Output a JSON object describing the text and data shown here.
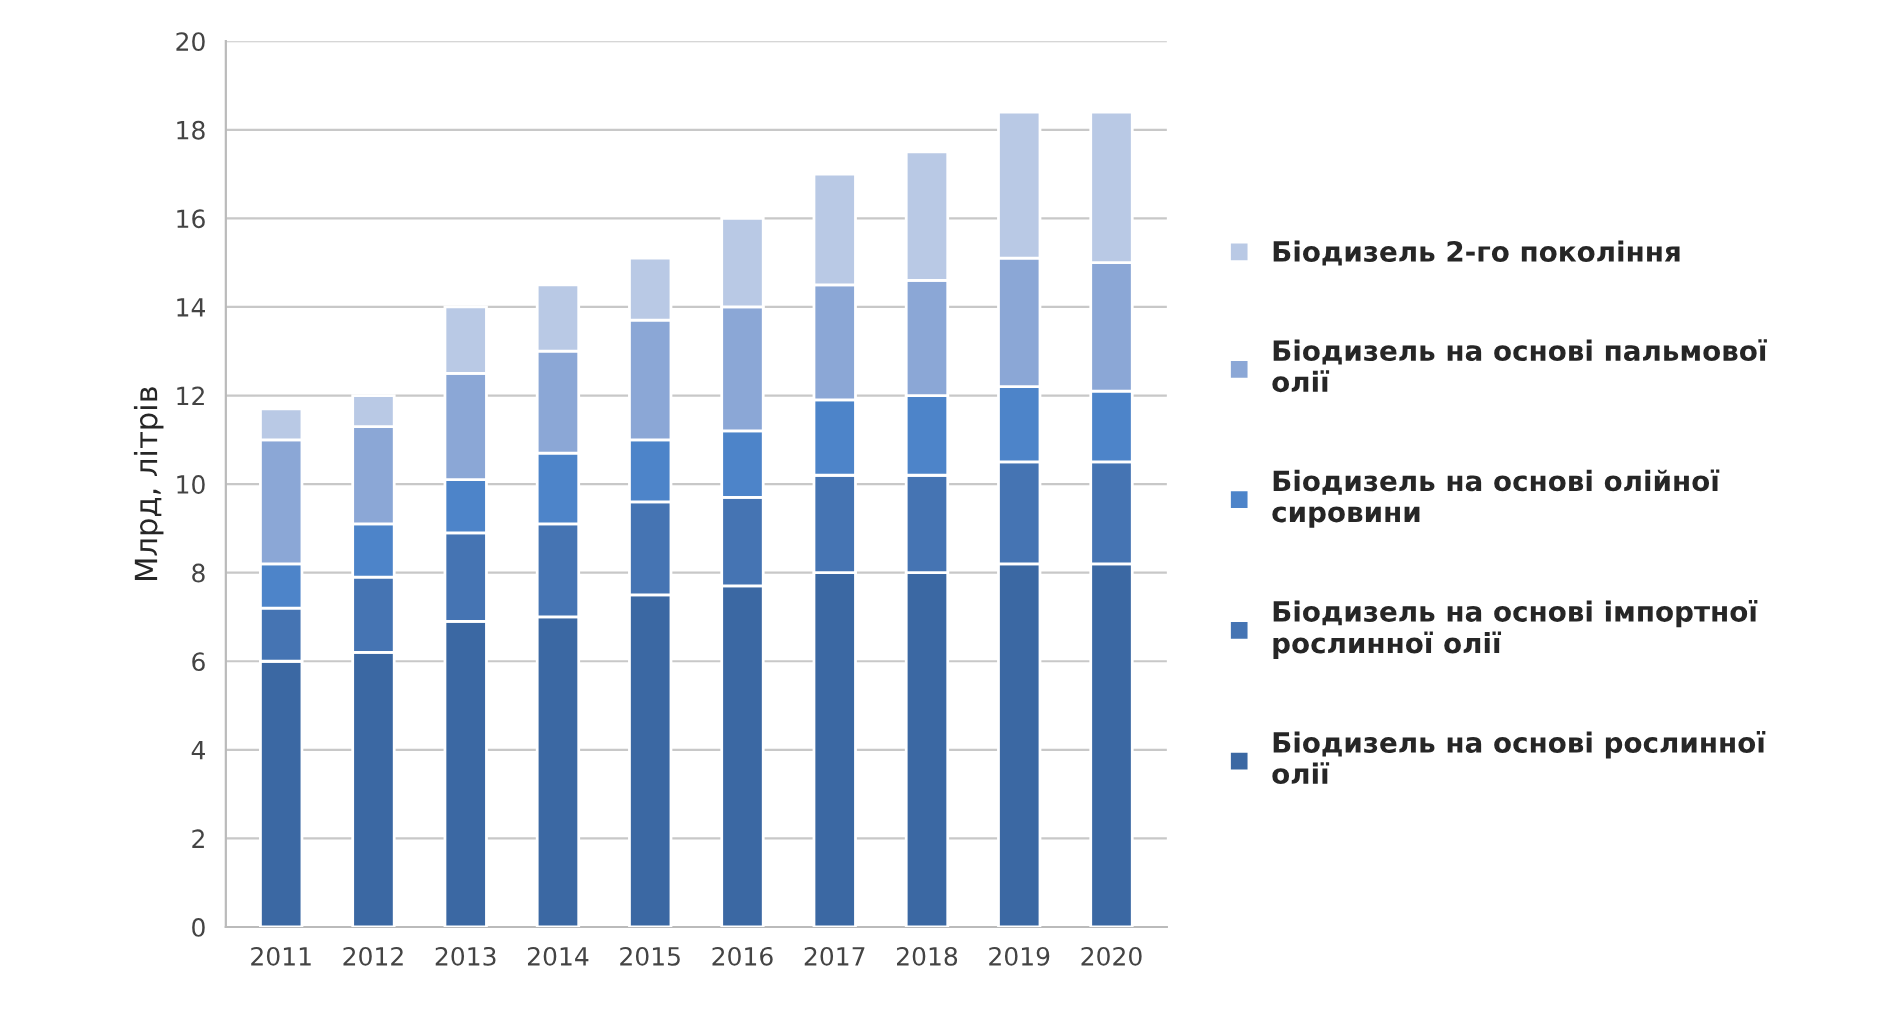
{
  "chart_data": {
    "type": "bar",
    "stacked": true,
    "ylabel": "Млрд, літрів",
    "categories": [
      "2011",
      "2012",
      "2013",
      "2014",
      "2015",
      "2016",
      "2017",
      "2018",
      "2019",
      "2020"
    ],
    "series": [
      {
        "name": "Біодизель на основі рослинної олії",
        "color": "#3b68a3",
        "values": [
          6.0,
          6.2,
          6.9,
          7.0,
          7.5,
          7.7,
          8.0,
          8.0,
          8.2,
          8.2
        ]
      },
      {
        "name": "Біодизель на основі імпортної рослинної олії",
        "color": "#4574b3",
        "values": [
          1.2,
          1.7,
          2.0,
          2.1,
          2.1,
          2.0,
          2.2,
          2.2,
          2.3,
          2.3
        ]
      },
      {
        "name": "Біодизель на основі олійної сировини",
        "color": "#4d84c9",
        "values": [
          1.0,
          1.2,
          1.2,
          1.6,
          1.4,
          1.5,
          1.7,
          1.8,
          1.7,
          1.6
        ]
      },
      {
        "name": "Біодизель на основі пальмової олії",
        "color": "#8ba7d6",
        "values": [
          2.8,
          2.2,
          2.4,
          2.3,
          2.7,
          2.8,
          2.6,
          2.6,
          2.9,
          2.9
        ]
      },
      {
        "name": "Біодизель 2-го покоління",
        "color": "#b9c9e5",
        "values": [
          0.7,
          0.7,
          1.5,
          1.5,
          1.4,
          2.0,
          2.5,
          2.9,
          3.3,
          3.4
        ]
      }
    ],
    "ylim": [
      0,
      20
    ],
    "yticks": [
      0,
      2,
      4,
      6,
      8,
      10,
      12,
      14,
      16,
      18,
      20
    ],
    "grid": "y",
    "legend": "right"
  }
}
